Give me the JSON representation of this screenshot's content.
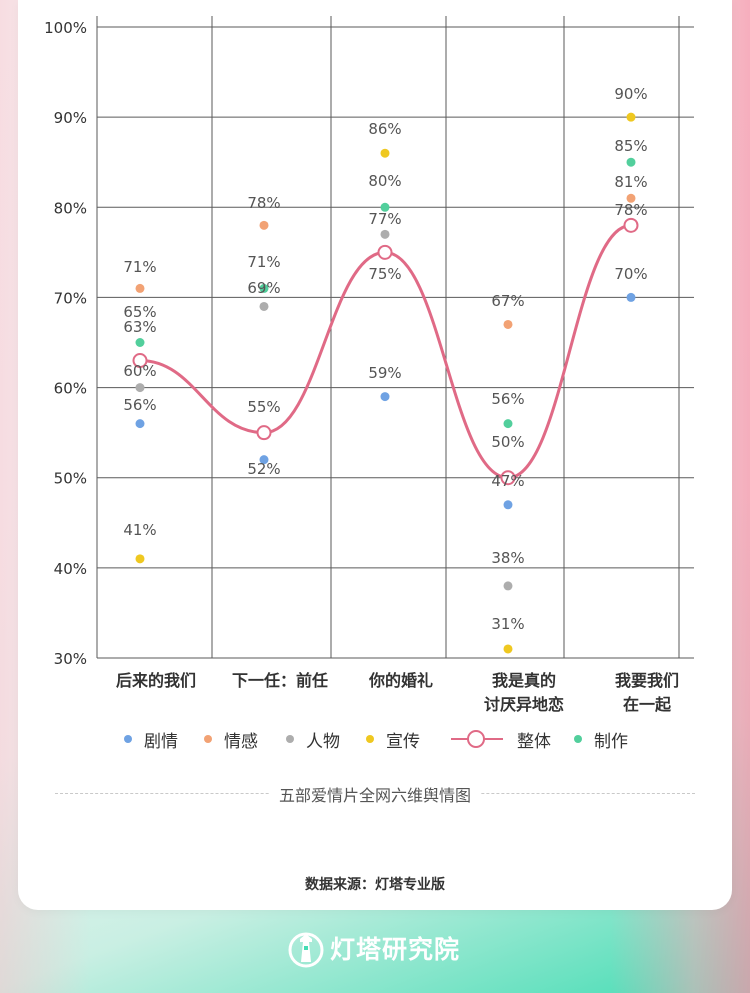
{
  "chart_data": {
    "type": "scatter",
    "title": "五部爱情片全网六维舆情图",
    "categories": [
      [
        "后来的我们"
      ],
      [
        "下一任：前任"
      ],
      [
        "你的婚礼"
      ],
      [
        "我是真的",
        "讨厌异地恋"
      ],
      [
        "我要我们",
        "在一起"
      ]
    ],
    "y_ticks": [
      "30%",
      "40%",
      "50%",
      "60%",
      "70%",
      "80%",
      "90%",
      "100%"
    ],
    "ylim": [
      30,
      100
    ],
    "grid": true,
    "series": [
      {
        "name": "剧情",
        "color": "#6fa2e3",
        "values": [
          56,
          52,
          59,
          47,
          70
        ]
      },
      {
        "name": "情感",
        "color": "#f2a274",
        "values": [
          71,
          78,
          75,
          67,
          81
        ]
      },
      {
        "name": "人物",
        "color": "#adadad",
        "values": [
          60,
          69,
          77,
          38,
          78
        ]
      },
      {
        "name": "宣传",
        "color": "#efc820",
        "values": [
          41,
          55,
          86,
          31,
          90
        ]
      },
      {
        "name": "整体",
        "color": "#e06a86",
        "values": [
          63,
          55,
          75,
          50,
          78
        ],
        "style": "smooth-line"
      },
      {
        "name": "制作",
        "color": "#52cf9c",
        "values": [
          65,
          71,
          80,
          56,
          85
        ]
      }
    ],
    "point_labels": [
      [
        "41%",
        "56%",
        "60%",
        "63%",
        "65%",
        "71%"
      ],
      [
        "52%",
        "55%",
        "69%",
        "71%",
        "78%"
      ],
      [
        "59%",
        "75%",
        "77%",
        "80%",
        "86%"
      ],
      [
        "31%",
        "38%",
        "47%",
        "50%",
        "56%",
        "67%"
      ],
      [
        "70%",
        "78%",
        "81%",
        "85%",
        "90%"
      ]
    ]
  },
  "legend": {
    "items": [
      {
        "label": "剧情",
        "color": "#6fa2e3",
        "kind": "dot"
      },
      {
        "label": "情感",
        "color": "#f2a274",
        "kind": "dot"
      },
      {
        "label": "人物",
        "color": "#adadad",
        "kind": "dot"
      },
      {
        "label": "宣传",
        "color": "#efc820",
        "kind": "dot"
      },
      {
        "label": "整体",
        "color": "#e06a86",
        "kind": "line"
      },
      {
        "label": "制作",
        "color": "#52cf9c",
        "kind": "dot"
      }
    ]
  },
  "subtitle": "五部爱情片全网六维舆情图",
  "source": "数据来源：灯塔专业版",
  "brand": {
    "name": "灯塔研究院",
    "icon": "lighthouse-logo-icon"
  }
}
